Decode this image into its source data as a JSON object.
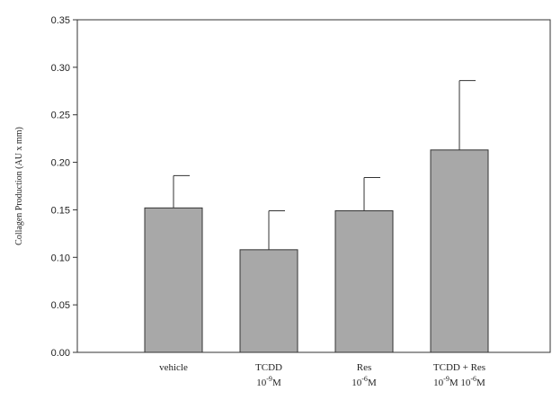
{
  "chart_data": {
    "type": "bar",
    "title": "",
    "ylabel": "Collagen Production (AU x mm)",
    "xlabel": "",
    "ylim": [
      0,
      0.35
    ],
    "yticks": [
      "0.00",
      "0.05",
      "0.10",
      "0.15",
      "0.20",
      "0.25",
      "0.30",
      "0.35"
    ],
    "categories": [
      {
        "lines": [
          [
            {
              "t": "vehicle"
            }
          ]
        ]
      },
      {
        "lines": [
          [
            {
              "t": "TCDD"
            }
          ],
          [
            {
              "t": "10"
            },
            {
              "t": "-9",
              "sup": true
            },
            {
              "t": "M"
            }
          ]
        ]
      },
      {
        "lines": [
          [
            {
              "t": "Res"
            }
          ],
          [
            {
              "t": "10"
            },
            {
              "t": "-6",
              "sup": true
            },
            {
              "t": "M"
            }
          ]
        ]
      },
      {
        "lines": [
          [
            {
              "t": "TCDD  +  Res"
            }
          ],
          [
            {
              "t": "10"
            },
            {
              "t": "-9",
              "sup": true
            },
            {
              "t": "M   10"
            },
            {
              "t": "-6",
              "sup": true
            },
            {
              "t": "M"
            }
          ]
        ]
      }
    ],
    "values": [
      0.152,
      0.108,
      0.149,
      0.213
    ],
    "errors": [
      0.034,
      0.041,
      0.035,
      0.073
    ],
    "bar_color": "#a8a8a8",
    "grid": false
  }
}
